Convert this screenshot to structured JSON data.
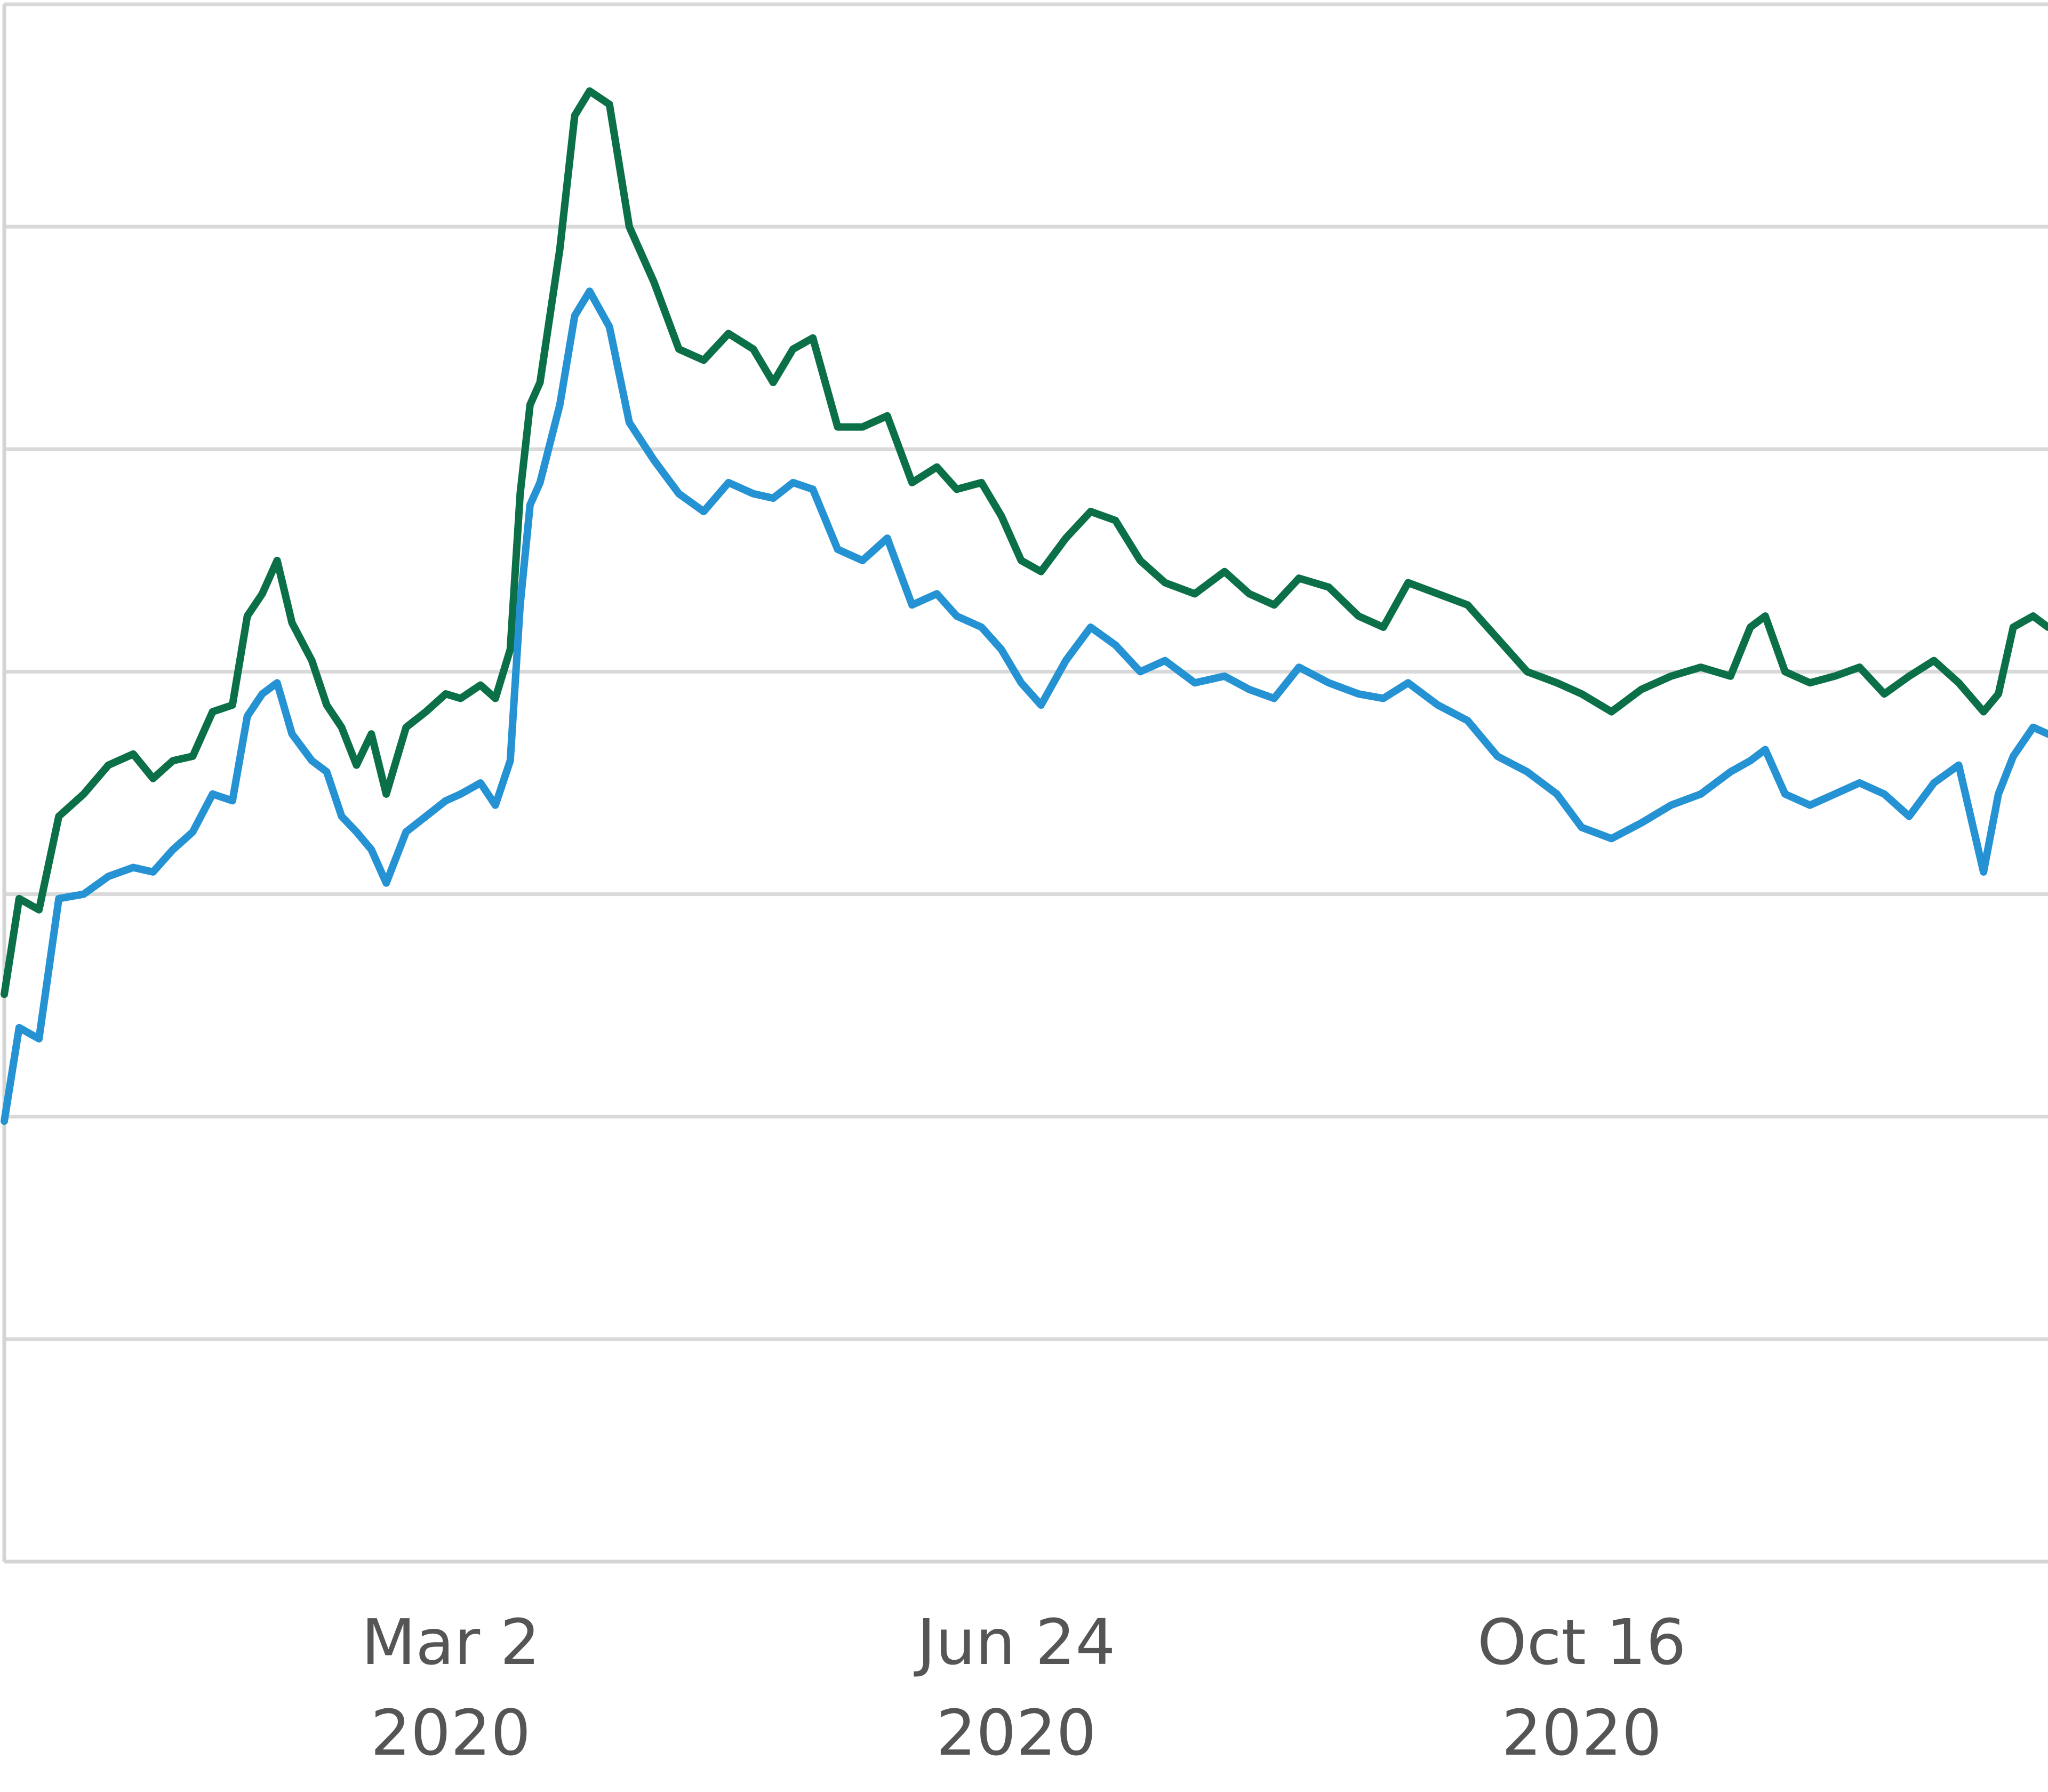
{
  "chart_data": {
    "type": "line",
    "title": "",
    "xlabel": "",
    "ylabel": "",
    "x_axis": {
      "type": "date",
      "range": [
        "2019-12-03",
        "2021-01-18"
      ],
      "ticks": [
        {
          "date": "2020-03-02",
          "line1": "Mar 2",
          "line2": "2020"
        },
        {
          "date": "2020-06-24",
          "line1": "Jun 24",
          "line2": "2020"
        },
        {
          "date": "2020-10-16",
          "line1": "Oct 16",
          "line2": "2020"
        }
      ]
    },
    "y_axis": {
      "range": [
        0,
        7
      ],
      "gridlines": [
        1,
        2,
        3,
        4,
        5,
        6,
        7
      ],
      "tick_labels_visible": false
    },
    "grid": true,
    "legend": "none",
    "series": [
      {
        "color": "#0b7048",
        "points": [
          [
            "2019-12-03",
            2.55
          ],
          [
            "2019-12-06",
            2.98
          ],
          [
            "2019-12-10",
            2.93
          ],
          [
            "2019-12-14",
            3.35
          ],
          [
            "2019-12-19",
            3.45
          ],
          [
            "2019-12-24",
            3.58
          ],
          [
            "2019-12-29",
            3.63
          ],
          [
            "2020-01-02",
            3.52
          ],
          [
            "2020-01-06",
            3.6
          ],
          [
            "2020-01-10",
            3.62
          ],
          [
            "2020-01-14",
            3.82
          ],
          [
            "2020-01-18",
            3.85
          ],
          [
            "2020-01-21",
            4.25
          ],
          [
            "2020-01-24",
            4.35
          ],
          [
            "2020-01-27",
            4.5
          ],
          [
            "2020-01-30",
            4.22
          ],
          [
            "2020-02-03",
            4.05
          ],
          [
            "2020-02-06",
            3.85
          ],
          [
            "2020-02-09",
            3.75
          ],
          [
            "2020-02-12",
            3.58
          ],
          [
            "2020-02-15",
            3.72
          ],
          [
            "2020-02-18",
            3.45
          ],
          [
            "2020-02-22",
            3.75
          ],
          [
            "2020-02-26",
            3.82
          ],
          [
            "2020-03-01",
            3.9
          ],
          [
            "2020-03-04",
            3.88
          ],
          [
            "2020-03-08",
            3.94
          ],
          [
            "2020-03-11",
            3.88
          ],
          [
            "2020-03-14",
            4.1
          ],
          [
            "2020-03-16",
            4.8
          ],
          [
            "2020-03-18",
            5.2
          ],
          [
            "2020-03-20",
            5.3
          ],
          [
            "2020-03-24",
            5.9
          ],
          [
            "2020-03-27",
            6.5
          ],
          [
            "2020-03-30",
            6.61
          ],
          [
            "2020-04-03",
            6.55
          ],
          [
            "2020-04-07",
            6.0
          ],
          [
            "2020-04-12",
            5.75
          ],
          [
            "2020-04-17",
            5.45
          ],
          [
            "2020-04-22",
            5.4
          ],
          [
            "2020-04-27",
            5.52
          ],
          [
            "2020-05-02",
            5.45
          ],
          [
            "2020-05-06",
            5.3
          ],
          [
            "2020-05-10",
            5.45
          ],
          [
            "2020-05-14",
            5.5
          ],
          [
            "2020-05-19",
            5.1
          ],
          [
            "2020-05-24",
            5.1
          ],
          [
            "2020-05-29",
            5.15
          ],
          [
            "2020-06-03",
            4.85
          ],
          [
            "2020-06-08",
            4.92
          ],
          [
            "2020-06-12",
            4.82
          ],
          [
            "2020-06-17",
            4.85
          ],
          [
            "2020-06-21",
            4.7
          ],
          [
            "2020-06-25",
            4.5
          ],
          [
            "2020-06-29",
            4.45
          ],
          [
            "2020-07-04",
            4.6
          ],
          [
            "2020-07-09",
            4.72
          ],
          [
            "2020-07-14",
            4.68
          ],
          [
            "2020-07-19",
            4.5
          ],
          [
            "2020-07-24",
            4.4
          ],
          [
            "2020-07-30",
            4.35
          ],
          [
            "2020-08-05",
            4.45
          ],
          [
            "2020-08-10",
            4.35
          ],
          [
            "2020-08-15",
            4.3
          ],
          [
            "2020-08-20",
            4.42
          ],
          [
            "2020-08-26",
            4.38
          ],
          [
            "2020-09-01",
            4.25
          ],
          [
            "2020-09-06",
            4.2
          ],
          [
            "2020-09-11",
            4.4
          ],
          [
            "2020-09-17",
            4.35
          ],
          [
            "2020-09-23",
            4.3
          ],
          [
            "2020-09-29",
            4.15
          ],
          [
            "2020-10-05",
            4.0
          ],
          [
            "2020-10-11",
            3.95
          ],
          [
            "2020-10-16",
            3.9
          ],
          [
            "2020-10-22",
            3.82
          ],
          [
            "2020-10-28",
            3.92
          ],
          [
            "2020-11-03",
            3.98
          ],
          [
            "2020-11-09",
            4.02
          ],
          [
            "2020-11-15",
            3.98
          ],
          [
            "2020-11-19",
            4.2
          ],
          [
            "2020-11-22",
            4.25
          ],
          [
            "2020-11-26",
            4.0
          ],
          [
            "2020-12-01",
            3.95
          ],
          [
            "2020-12-06",
            3.98
          ],
          [
            "2020-12-11",
            4.02
          ],
          [
            "2020-12-16",
            3.9
          ],
          [
            "2020-12-21",
            3.98
          ],
          [
            "2020-12-26",
            4.05
          ],
          [
            "2020-12-31",
            3.95
          ],
          [
            "2021-01-05",
            3.82
          ],
          [
            "2021-01-08",
            3.9
          ],
          [
            "2021-01-11",
            4.2
          ],
          [
            "2021-01-15",
            4.25
          ],
          [
            "2021-01-18",
            4.2
          ]
        ]
      },
      {
        "color": "#2592d3",
        "points": [
          [
            "2019-12-03",
            1.98
          ],
          [
            "2019-12-06",
            2.4
          ],
          [
            "2019-12-10",
            2.35
          ],
          [
            "2019-12-14",
            2.98
          ],
          [
            "2019-12-19",
            3.0
          ],
          [
            "2019-12-24",
            3.08
          ],
          [
            "2019-12-29",
            3.12
          ],
          [
            "2020-01-02",
            3.1
          ],
          [
            "2020-01-06",
            3.2
          ],
          [
            "2020-01-10",
            3.28
          ],
          [
            "2020-01-14",
            3.45
          ],
          [
            "2020-01-18",
            3.42
          ],
          [
            "2020-01-21",
            3.8
          ],
          [
            "2020-01-24",
            3.9
          ],
          [
            "2020-01-27",
            3.95
          ],
          [
            "2020-01-30",
            3.72
          ],
          [
            "2020-02-03",
            3.6
          ],
          [
            "2020-02-06",
            3.55
          ],
          [
            "2020-02-09",
            3.35
          ],
          [
            "2020-02-12",
            3.28
          ],
          [
            "2020-02-15",
            3.2
          ],
          [
            "2020-02-18",
            3.05
          ],
          [
            "2020-02-22",
            3.28
          ],
          [
            "2020-02-26",
            3.35
          ],
          [
            "2020-03-01",
            3.42
          ],
          [
            "2020-03-04",
            3.45
          ],
          [
            "2020-03-08",
            3.5
          ],
          [
            "2020-03-11",
            3.4
          ],
          [
            "2020-03-14",
            3.6
          ],
          [
            "2020-03-16",
            4.3
          ],
          [
            "2020-03-18",
            4.75
          ],
          [
            "2020-03-20",
            4.85
          ],
          [
            "2020-03-24",
            5.2
          ],
          [
            "2020-03-27",
            5.6
          ],
          [
            "2020-03-30",
            5.71
          ],
          [
            "2020-04-03",
            5.55
          ],
          [
            "2020-04-07",
            5.12
          ],
          [
            "2020-04-12",
            4.95
          ],
          [
            "2020-04-17",
            4.8
          ],
          [
            "2020-04-22",
            4.72
          ],
          [
            "2020-04-27",
            4.85
          ],
          [
            "2020-05-02",
            4.8
          ],
          [
            "2020-05-06",
            4.78
          ],
          [
            "2020-05-10",
            4.85
          ],
          [
            "2020-05-14",
            4.82
          ],
          [
            "2020-05-19",
            4.55
          ],
          [
            "2020-05-24",
            4.5
          ],
          [
            "2020-05-29",
            4.6
          ],
          [
            "2020-06-03",
            4.3
          ],
          [
            "2020-06-08",
            4.35
          ],
          [
            "2020-06-12",
            4.25
          ],
          [
            "2020-06-17",
            4.2
          ],
          [
            "2020-06-21",
            4.1
          ],
          [
            "2020-06-25",
            3.95
          ],
          [
            "2020-06-29",
            3.85
          ],
          [
            "2020-07-04",
            4.05
          ],
          [
            "2020-07-09",
            4.2
          ],
          [
            "2020-07-14",
            4.12
          ],
          [
            "2020-07-19",
            4.0
          ],
          [
            "2020-07-24",
            4.05
          ],
          [
            "2020-07-30",
            3.95
          ],
          [
            "2020-08-05",
            3.98
          ],
          [
            "2020-08-10",
            3.92
          ],
          [
            "2020-08-15",
            3.88
          ],
          [
            "2020-08-20",
            4.02
          ],
          [
            "2020-08-26",
            3.95
          ],
          [
            "2020-09-01",
            3.9
          ],
          [
            "2020-09-06",
            3.88
          ],
          [
            "2020-09-11",
            3.95
          ],
          [
            "2020-09-17",
            3.85
          ],
          [
            "2020-09-23",
            3.78
          ],
          [
            "2020-09-29",
            3.62
          ],
          [
            "2020-10-05",
            3.55
          ],
          [
            "2020-10-11",
            3.45
          ],
          [
            "2020-10-16",
            3.3
          ],
          [
            "2020-10-22",
            3.25
          ],
          [
            "2020-10-28",
            3.32
          ],
          [
            "2020-11-03",
            3.4
          ],
          [
            "2020-11-09",
            3.45
          ],
          [
            "2020-11-15",
            3.55
          ],
          [
            "2020-11-19",
            3.6
          ],
          [
            "2020-11-22",
            3.65
          ],
          [
            "2020-11-26",
            3.45
          ],
          [
            "2020-12-01",
            3.4
          ],
          [
            "2020-12-06",
            3.45
          ],
          [
            "2020-12-11",
            3.5
          ],
          [
            "2020-12-16",
            3.45
          ],
          [
            "2020-12-21",
            3.35
          ],
          [
            "2020-12-26",
            3.5
          ],
          [
            "2020-12-31",
            3.58
          ],
          [
            "2021-01-05",
            3.1
          ],
          [
            "2021-01-08",
            3.45
          ],
          [
            "2021-01-11",
            3.62
          ],
          [
            "2021-01-15",
            3.75
          ],
          [
            "2021-01-18",
            3.72
          ]
        ]
      }
    ]
  }
}
